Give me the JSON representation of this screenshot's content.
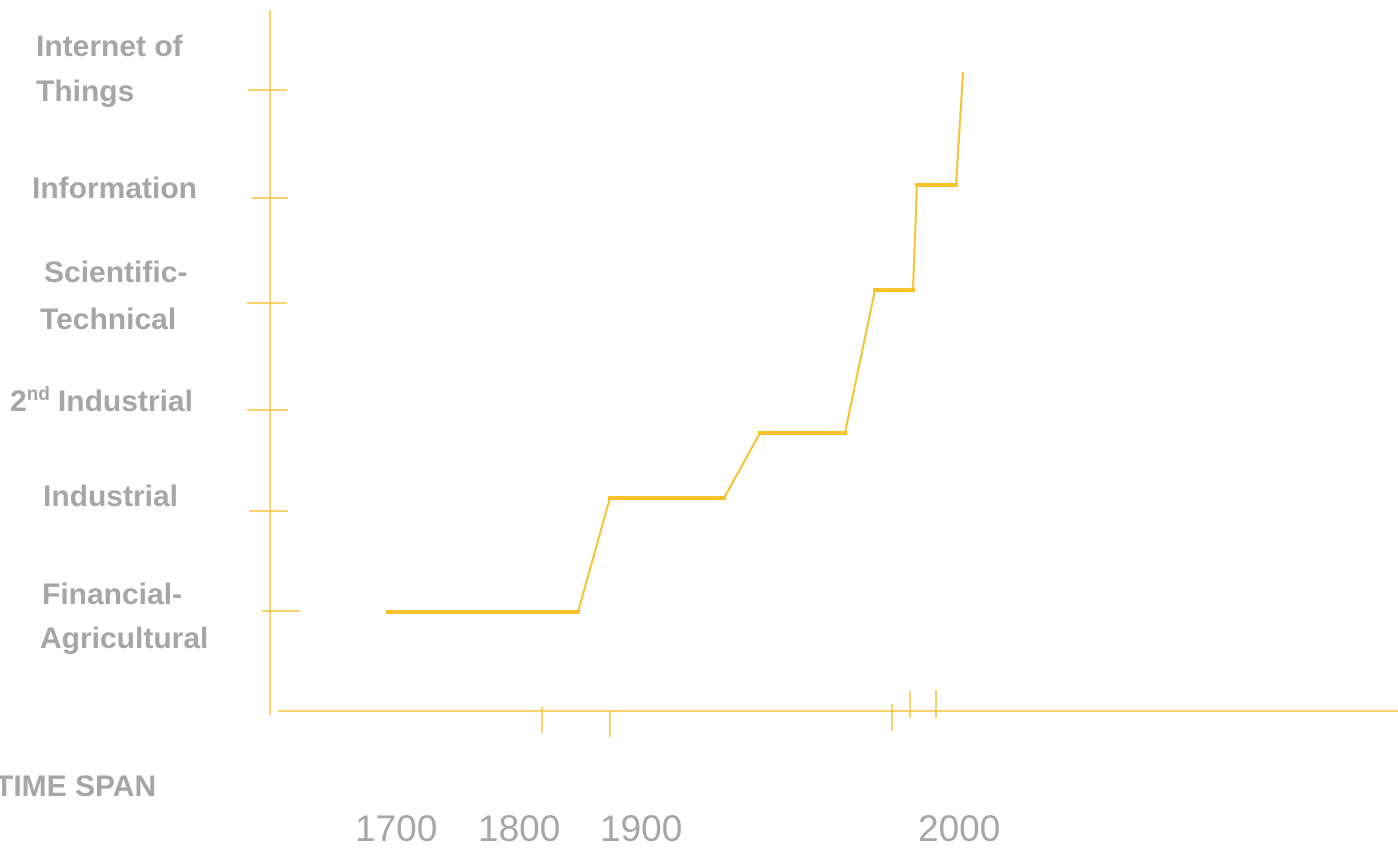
{
  "stages": [
    {
      "lines": [
        "Internet of",
        "Things"
      ]
    },
    {
      "lines": [
        "Information"
      ]
    },
    {
      "lines": [
        "Scientific-",
        "Technical"
      ]
    },
    {
      "base": "2",
      "sup": "nd",
      "text": "Industrial"
    },
    {
      "lines": [
        "Industrial"
      ]
    },
    {
      "lines": [
        "Financial-",
        "Agricultural"
      ]
    }
  ],
  "axis_title": "TIME SPAN",
  "years": [
    "1700",
    "1800",
    "1900",
    "2000"
  ]
}
